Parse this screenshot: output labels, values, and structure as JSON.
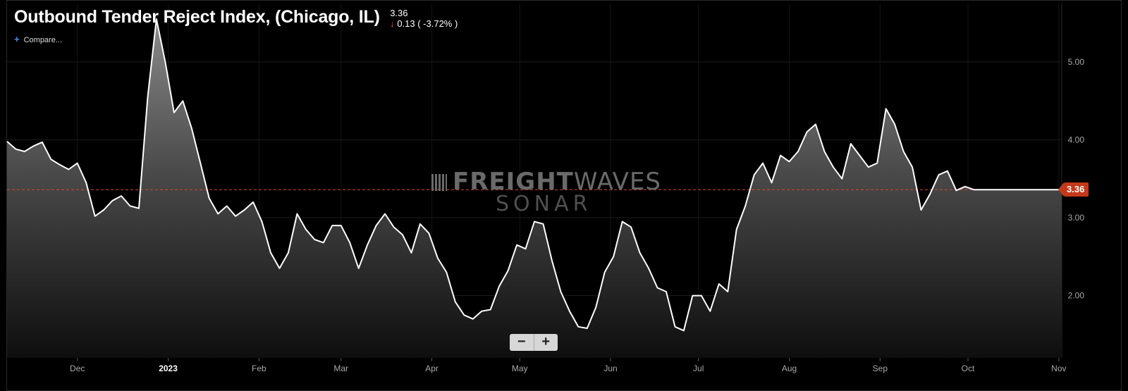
{
  "header": {
    "title": "Outbound Tender Reject Index, (Chicago, IL)",
    "last_value": "3.36",
    "change": "0.13 ( -3.72% )",
    "compare_label": "Compare..."
  },
  "watermark": {
    "line1_bold": "FREIGHT",
    "line1_light": "WAVES",
    "line2": "SONAR"
  },
  "zoom": {
    "minus": "−",
    "plus": "+"
  },
  "colors": {
    "line": "#ffffff",
    "ref_line": "#d9482b",
    "tag": "#c4391b",
    "down": "#e5534b"
  },
  "chart_data": {
    "type": "area",
    "title": "Outbound Tender Reject Index, (Chicago, IL)",
    "xlabel": "",
    "ylabel": "",
    "ylim": [
      1.2,
      5.75
    ],
    "y_ticks": [
      "5.00",
      "4.00",
      "3.00",
      "2.00"
    ],
    "x_ticks": [
      "Dec",
      "2023",
      "Feb",
      "Mar",
      "Apr",
      "May",
      "Jun",
      "Jul",
      "Aug",
      "Sep",
      "Oct",
      "Nov"
    ],
    "reference_line": 3.36,
    "current_value_label": "3.36",
    "grid": true,
    "x": [
      "2022-11-07",
      "2022-11-10",
      "2022-11-13",
      "2022-11-16",
      "2022-11-19",
      "2022-11-22",
      "2022-11-25",
      "2022-11-28",
      "2022-12-01",
      "2022-12-04",
      "2022-12-07",
      "2022-12-10",
      "2022-12-13",
      "2022-12-16",
      "2022-12-19",
      "2022-12-22",
      "2022-12-25",
      "2022-12-28",
      "2022-12-31",
      "2023-01-03",
      "2023-01-06",
      "2023-01-09",
      "2023-01-12",
      "2023-01-15",
      "2023-01-18",
      "2023-01-21",
      "2023-01-24",
      "2023-01-27",
      "2023-01-30",
      "2023-02-02",
      "2023-02-05",
      "2023-02-08",
      "2023-02-11",
      "2023-02-14",
      "2023-02-17",
      "2023-02-20",
      "2023-02-23",
      "2023-02-26",
      "2023-03-01",
      "2023-03-04",
      "2023-03-07",
      "2023-03-10",
      "2023-03-13",
      "2023-03-16",
      "2023-03-19",
      "2023-03-22",
      "2023-03-25",
      "2023-03-28",
      "2023-03-31",
      "2023-04-03",
      "2023-04-06",
      "2023-04-09",
      "2023-04-12",
      "2023-04-15",
      "2023-04-18",
      "2023-04-21",
      "2023-04-24",
      "2023-04-27",
      "2023-04-30",
      "2023-05-03",
      "2023-05-06",
      "2023-05-09",
      "2023-05-12",
      "2023-05-15",
      "2023-05-18",
      "2023-05-21",
      "2023-05-24",
      "2023-05-27",
      "2023-05-30",
      "2023-06-02",
      "2023-06-05",
      "2023-06-08",
      "2023-06-11",
      "2023-06-14",
      "2023-06-17",
      "2023-06-20",
      "2023-06-23",
      "2023-06-26",
      "2023-06-29",
      "2023-07-02",
      "2023-07-05",
      "2023-07-08",
      "2023-07-11",
      "2023-07-14",
      "2023-07-17",
      "2023-07-20",
      "2023-07-23",
      "2023-07-26",
      "2023-07-29",
      "2023-08-01",
      "2023-08-04",
      "2023-08-07",
      "2023-08-10",
      "2023-08-13",
      "2023-08-16",
      "2023-08-19",
      "2023-08-22",
      "2023-08-25",
      "2023-08-28",
      "2023-08-31",
      "2023-09-03",
      "2023-09-06",
      "2023-09-09",
      "2023-09-12",
      "2023-09-15",
      "2023-09-18",
      "2023-09-21",
      "2023-09-24",
      "2023-09-27",
      "2023-09-30",
      "2023-10-03",
      "2023-10-06",
      "2023-10-09",
      "2023-10-12",
      "2023-10-15",
      "2023-10-18",
      "2023-10-21",
      "2023-10-24",
      "2023-10-27",
      "2023-10-30",
      "2023-11-02"
    ],
    "series": [
      {
        "values": [
          3.98,
          3.88,
          3.85,
          3.92,
          3.97,
          3.75,
          3.68,
          3.62,
          3.7,
          3.45,
          3.02,
          3.1,
          3.22,
          3.28,
          3.15,
          3.12,
          4.55,
          5.55,
          5.0,
          4.35,
          4.5,
          4.15,
          3.7,
          3.25,
          3.05,
          3.15,
          3.02,
          3.1,
          3.2,
          2.95,
          2.55,
          2.35,
          2.55,
          3.05,
          2.85,
          2.72,
          2.68,
          2.9,
          2.9,
          2.68,
          2.35,
          2.65,
          2.9,
          3.05,
          2.88,
          2.78,
          2.55,
          2.92,
          2.8,
          2.48,
          2.3,
          1.92,
          1.75,
          1.7,
          1.8,
          1.82,
          2.12,
          2.32,
          2.65,
          2.6,
          2.95,
          2.92,
          2.45,
          2.05,
          1.8,
          1.6,
          1.58,
          1.85,
          2.3,
          2.5,
          2.95,
          2.88,
          2.55,
          2.35,
          2.1,
          2.05,
          1.6,
          1.55,
          2.0,
          2.0,
          1.8,
          2.15,
          2.05,
          2.85,
          3.15,
          3.55,
          3.7,
          3.45,
          3.8,
          3.72,
          3.85,
          4.1,
          4.2,
          3.85,
          3.65,
          3.5,
          3.95,
          3.8,
          3.65,
          3.7,
          4.4,
          4.2,
          3.85,
          3.65,
          3.1,
          3.3,
          3.55,
          3.6,
          3.35,
          3.4,
          3.36,
          3.36,
          3.36,
          3.36,
          3.36,
          3.36,
          3.36,
          3.36,
          3.36,
          3.36,
          3.36
        ]
      }
    ]
  }
}
